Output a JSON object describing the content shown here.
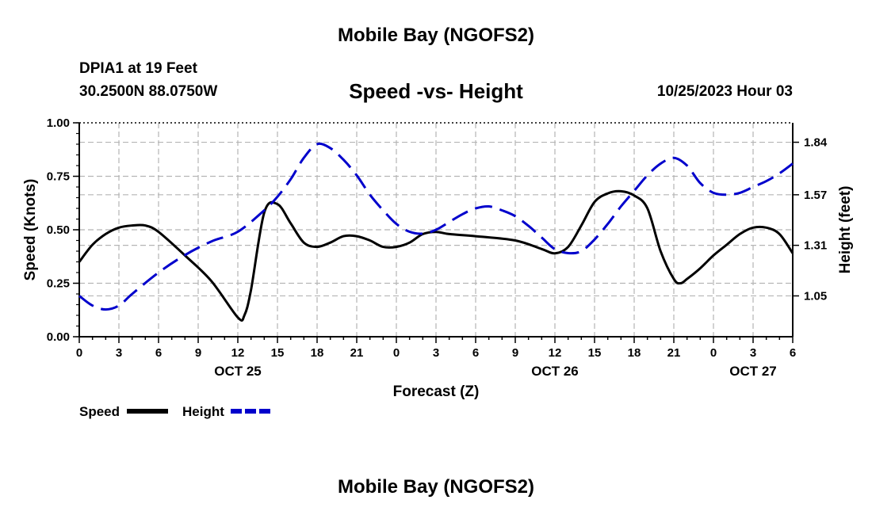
{
  "header": {
    "title": "Mobile Bay (NGOFS2)",
    "station": "DPIA1 at 19 Feet",
    "coords": "30.2500N  88.0750W",
    "chart_title": "Speed -vs- Height",
    "datetime": "10/25/2023 Hour 03"
  },
  "footer": {
    "title": "Mobile Bay (NGOFS2)"
  },
  "colors": {
    "speed": "#000000",
    "height": "#0000cc",
    "grid": "#b5b5b5"
  },
  "chart_data": {
    "type": "line",
    "title": "Speed -vs- Height",
    "xlabel": "Forecast (Z)",
    "ylabel": "Speed (Knots)",
    "y2label": "Height (feet)",
    "xlim": [
      0,
      54
    ],
    "ylim": [
      0,
      1
    ],
    "y2lim": [
      0.84,
      1.94
    ],
    "x_tick_values": [
      0,
      3,
      6,
      9,
      12,
      15,
      18,
      21,
      24,
      27,
      30,
      33,
      36,
      39,
      42,
      45,
      48,
      51,
      54
    ],
    "x_tick_labels": [
      "0",
      "3",
      "6",
      "9",
      "12",
      "15",
      "18",
      "21",
      "0",
      "3",
      "6",
      "9",
      "12",
      "15",
      "18",
      "21",
      "0",
      "3",
      "6"
    ],
    "date_labels": [
      {
        "label": "OCT 25",
        "x": 12
      },
      {
        "label": "OCT 26",
        "x": 36
      },
      {
        "label": "OCT 27",
        "x": 51
      }
    ],
    "y_ticks": [
      0.0,
      0.25,
      0.5,
      0.75,
      1.0
    ],
    "y_tick_labels": [
      "0.00",
      "0.25",
      "0.50",
      "0.75",
      "1.00"
    ],
    "y2_ticks": [
      1.05,
      1.31,
      1.57,
      1.84
    ],
    "y2_tick_labels": [
      "1.05",
      "1.31",
      "1.57",
      "1.84"
    ],
    "grid": true,
    "legend_position": "bottom-left",
    "series": [
      {
        "name": "Speed",
        "axis": "left",
        "style": "solid",
        "x": [
          0,
          1,
          2,
          3,
          4,
          5,
          6,
          8,
          10,
          12,
          12.5,
          13,
          14,
          15,
          16,
          17,
          18,
          19,
          20,
          21,
          22,
          23,
          24,
          25,
          26,
          27,
          28,
          30,
          33,
          35,
          36,
          37,
          38,
          39,
          40,
          41,
          42,
          43,
          44,
          45,
          45.5,
          46,
          47,
          48,
          49,
          50,
          51,
          52,
          53,
          54
        ],
        "values": [
          0.35,
          0.43,
          0.48,
          0.51,
          0.52,
          0.52,
          0.49,
          0.38,
          0.26,
          0.09,
          0.1,
          0.22,
          0.58,
          0.62,
          0.53,
          0.44,
          0.42,
          0.44,
          0.47,
          0.47,
          0.45,
          0.42,
          0.42,
          0.44,
          0.48,
          0.49,
          0.48,
          0.47,
          0.45,
          0.41,
          0.39,
          0.42,
          0.52,
          0.63,
          0.67,
          0.68,
          0.66,
          0.6,
          0.4,
          0.27,
          0.25,
          0.27,
          0.32,
          0.38,
          0.43,
          0.48,
          0.51,
          0.51,
          0.48,
          0.39
        ]
      },
      {
        "name": "Height",
        "axis": "right",
        "style": "dashed",
        "x": [
          0,
          1,
          2,
          3,
          4,
          6,
          8,
          10,
          12,
          14,
          15,
          16,
          17,
          18,
          19,
          20,
          21,
          22,
          23,
          24,
          25,
          26,
          27,
          28,
          29,
          30,
          31,
          32,
          33,
          34,
          35,
          36,
          37,
          38,
          39,
          40,
          41,
          42,
          43,
          44,
          45,
          46,
          47,
          48,
          49,
          50,
          51,
          52,
          53,
          54
        ],
        "values": [
          1.05,
          1.0,
          0.98,
          1.0,
          1.06,
          1.17,
          1.26,
          1.33,
          1.38,
          1.49,
          1.56,
          1.65,
          1.76,
          1.83,
          1.81,
          1.75,
          1.67,
          1.57,
          1.49,
          1.42,
          1.38,
          1.37,
          1.39,
          1.43,
          1.47,
          1.5,
          1.51,
          1.49,
          1.46,
          1.41,
          1.35,
          1.29,
          1.27,
          1.28,
          1.34,
          1.42,
          1.51,
          1.59,
          1.67,
          1.73,
          1.76,
          1.72,
          1.63,
          1.58,
          1.57,
          1.58,
          1.61,
          1.64,
          1.68,
          1.73
        ]
      }
    ]
  }
}
